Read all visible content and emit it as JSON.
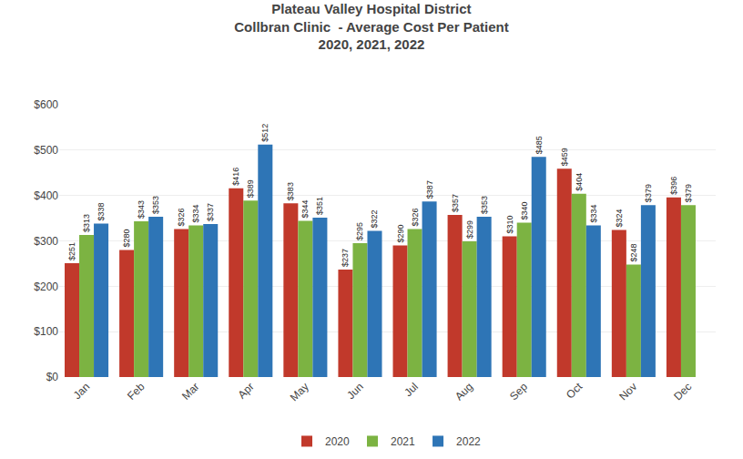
{
  "chart_data": {
    "type": "bar",
    "title": "Plateau Valley Hospital District",
    "subtitle": "Collbran Clinic  - Average Cost Per Patient\n2020, 2021, 2022",
    "categories": [
      "Jan",
      "Feb",
      "Mar",
      "Apr",
      "May",
      "Jun",
      "Jul",
      "Aug",
      "Sep",
      "Oct",
      "Nov",
      "Dec"
    ],
    "series": [
      {
        "name": "2020",
        "color": "#C1392B",
        "values": [
          251,
          280,
          326,
          416,
          383,
          237,
          290,
          357,
          310,
          459,
          324,
          396
        ],
        "value_labels": [
          "$251",
          "$280",
          "$326",
          "$416",
          "$383",
          "$237",
          "$290",
          "$357",
          "$310",
          "$459",
          "$324",
          "$396"
        ]
      },
      {
        "name": "2021",
        "color": "#7CB342",
        "values": [
          313,
          343,
          334,
          389,
          344,
          295,
          326,
          299,
          340,
          404,
          248,
          379
        ],
        "value_labels": [
          "$313",
          "$343",
          "$334",
          "$389",
          "$344",
          "$295",
          "$326",
          "$299",
          "$340",
          "$404",
          "$248",
          "$379"
        ]
      },
      {
        "name": "2022",
        "color": "#2E75B6",
        "values": [
          338,
          353,
          337,
          512,
          351,
          322,
          387,
          353,
          485,
          334,
          379,
          null
        ],
        "value_labels": [
          "$338",
          "$353",
          "$337",
          "$512",
          "$351",
          "$322",
          "$387",
          "$353",
          "$485",
          "$334",
          "$379",
          null
        ]
      }
    ],
    "ylim": [
      0,
      600
    ],
    "yticks": [
      {
        "value": 0,
        "label": "$0"
      },
      {
        "value": 100,
        "label": "$100"
      },
      {
        "value": 200,
        "label": "$200"
      },
      {
        "value": 300,
        "label": "$300"
      },
      {
        "value": 400,
        "label": "$400"
      },
      {
        "value": 500,
        "label": "$500"
      },
      {
        "value": 600,
        "label": "$600"
      }
    ],
    "grid": true,
    "data_labels": true,
    "legend": "bottom"
  }
}
